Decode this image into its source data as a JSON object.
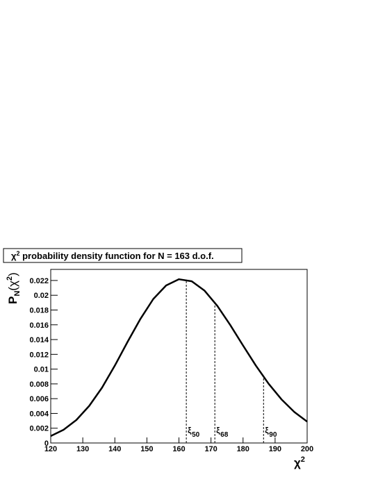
{
  "chart_data": {
    "type": "line",
    "title": [
      "χ",
      "2",
      " probability density function for N = 163 d.o.f."
    ],
    "xlabel": [
      "χ",
      "2"
    ],
    "ylabel": [
      "P",
      "N",
      "(χ",
      "2",
      ")"
    ],
    "x": [
      120,
      124,
      128,
      132,
      136,
      140,
      144,
      148,
      152,
      156,
      160,
      164,
      168,
      172,
      176,
      180,
      184,
      188,
      192,
      196,
      200
    ],
    "values": [
      0.000942,
      0.001786,
      0.003111,
      0.005019,
      0.007487,
      0.010476,
      0.01371,
      0.016812,
      0.019494,
      0.02133,
      0.022167,
      0.021891,
      0.020617,
      0.018544,
      0.015975,
      0.013198,
      0.010476,
      0.008005,
      0.005901,
      0.004196,
      0.002893
    ],
    "color": "#000000",
    "xlim": [
      120,
      200
    ],
    "xticks": [
      120,
      130,
      140,
      150,
      160,
      170,
      180,
      190,
      200
    ],
    "ylim": [
      0,
      0.0235
    ],
    "yticks": [
      0,
      0.002,
      0.004,
      0.006,
      0.008,
      0.01,
      0.012,
      0.014,
      0.016,
      0.018,
      0.02,
      0.022
    ],
    "markers": [
      {
        "x": 162.3,
        "y": 0.0221,
        "label": "ξ",
        "sub": "50"
      },
      {
        "x": 171.2,
        "y": 0.019,
        "label": "ξ",
        "sub": "68"
      },
      {
        "x": 186.4,
        "y": 0.009,
        "label": "ξ",
        "sub": "90"
      }
    ]
  }
}
